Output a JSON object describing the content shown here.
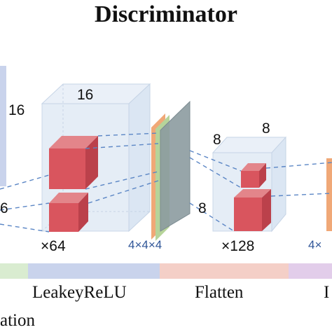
{
  "title": "Discriminator",
  "blocks": [
    {
      "width_label": "16",
      "height_label": "16",
      "left_label": "6",
      "channels_label": "×64"
    },
    {
      "width_label": "8",
      "height_label": "8",
      "left_label": "8",
      "channels_label": "×128"
    }
  ],
  "kernels": [
    "4×4×4",
    "4×"
  ],
  "legend": {
    "items": [
      "LeakeyReLU",
      "Flatten",
      "I"
    ],
    "bottom_partial": "ation",
    "bar_colors": [
      "#d9ecd0",
      "#c9d3ec",
      "#f4cfc7",
      "#e2cdea"
    ]
  },
  "colors": {
    "cube_fill": "#e3ecf6",
    "cube_edge": "#c6d4e6",
    "red_front": "#d9555e",
    "red_top": "#e3858a",
    "red_side": "#bb414b",
    "layer_gray": "#8c9ba0",
    "layer_green": "#b6d49a",
    "layer_orange": "#f0a877",
    "dash": "#5b86c5"
  }
}
